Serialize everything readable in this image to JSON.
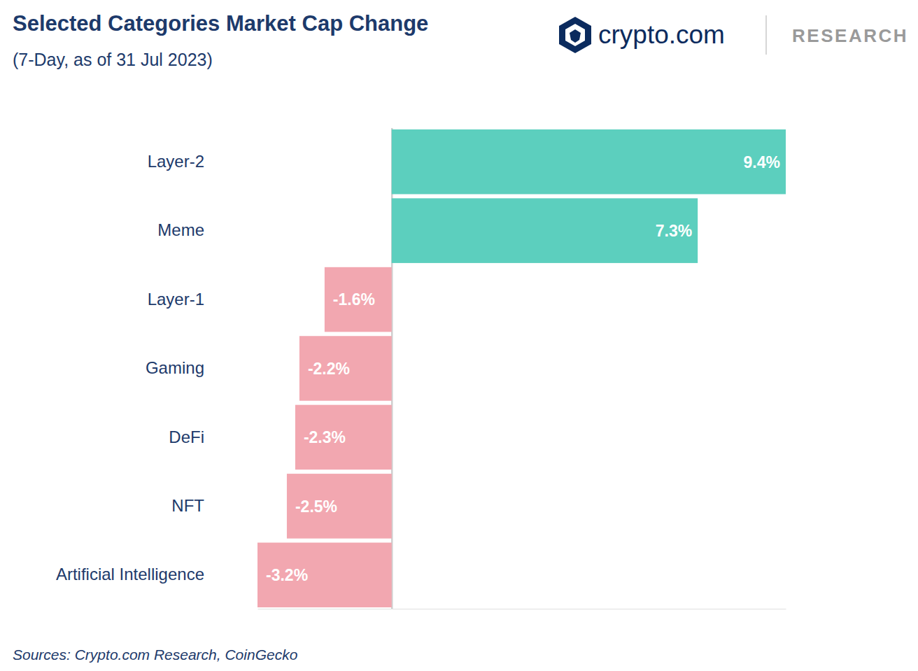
{
  "chart_data": {
    "type": "bar",
    "orientation": "horizontal",
    "title": "Selected Categories Market Cap Change",
    "subtitle": "(7-Day, as of 31 Jul 2023)",
    "annotations": [
      "crypto.com",
      "RESEARCH"
    ],
    "source": "Sources: Crypto.com Research, CoinGecko",
    "categories": [
      "Layer-2",
      "Meme",
      "Layer-1",
      "Gaming",
      "DeFi",
      "NFT",
      "Artificial Intelligence"
    ],
    "values": [
      9.4,
      7.3,
      -1.6,
      -2.2,
      -2.3,
      -2.5,
      -3.2
    ],
    "value_labels": [
      "9.4%",
      "7.3%",
      "-1.6%",
      "-2.2%",
      "-2.3%",
      "-2.5%",
      "-3.2%"
    ],
    "colors": [
      "#5ccfbe",
      "#5ccfbe",
      "#f2a7b0",
      "#f2a7b0",
      "#f2a7b0",
      "#f2a7b0",
      "#f2a7b0"
    ],
    "xlim": [
      -3.2,
      9.4
    ],
    "xticks": [
      0
    ],
    "tick_labels": "y",
    "data_labels": true,
    "grid": false
  }
}
